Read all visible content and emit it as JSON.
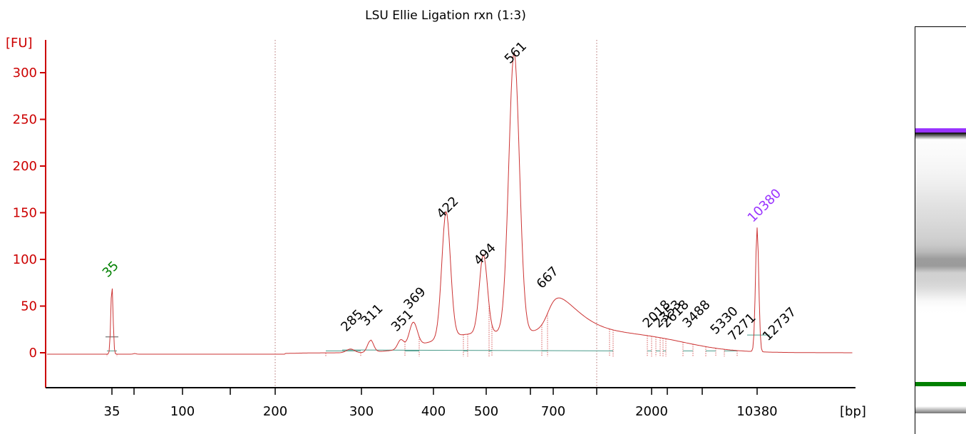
{
  "chart_data": {
    "type": "line",
    "title": "LSU Ellie Ligation rxn (1:3)",
    "ylabel": "[FU]",
    "xlabel": "[bp]",
    "ylim": [
      -35,
      330
    ],
    "y_ticks": [
      0,
      50,
      100,
      150,
      200,
      250,
      300
    ],
    "x_ticks": [
      "35",
      "100",
      "200",
      "300",
      "400",
      "500",
      "700",
      "2000",
      "10380"
    ],
    "grid": "vertical dotted at 200 and 1000",
    "markers": [
      {
        "label": "35",
        "size_bp": 35,
        "height": 74,
        "color": "#008000"
      },
      {
        "label": "10380",
        "size_bp": 10380,
        "height": 133,
        "color": "#9933ff"
      }
    ],
    "peaks": [
      {
        "label": "285",
        "size_bp": 285,
        "height": 4
      },
      {
        "label": "311",
        "size_bp": 311,
        "height": 13
      },
      {
        "label": "351",
        "size_bp": 351,
        "height": 10
      },
      {
        "label": "369",
        "size_bp": 369,
        "height": 26
      },
      {
        "label": "422",
        "size_bp": 422,
        "height": 137
      },
      {
        "label": "494",
        "size_bp": 494,
        "height": 87
      },
      {
        "label": "561",
        "size_bp": 561,
        "height": 303
      },
      {
        "label": "667",
        "size_bp": 667,
        "height": 62
      },
      {
        "label": "2018",
        "size_bp": 2018,
        "height": 14
      },
      {
        "label": "2353",
        "size_bp": 2353,
        "height": 12
      },
      {
        "label": "2618",
        "size_bp": 2618,
        "height": 11
      },
      {
        "label": "3488",
        "size_bp": 3488,
        "height": 8
      },
      {
        "label": "5330",
        "size_bp": 5330,
        "height": 5
      },
      {
        "label": "7271",
        "size_bp": 7271,
        "height": 3
      },
      {
        "label": "12737",
        "size_bp": 12737,
        "height": 2
      }
    ],
    "trace_color": "#cc3333",
    "axis_color": "#cc0000",
    "baseline_color": "#4a9a8a"
  }
}
